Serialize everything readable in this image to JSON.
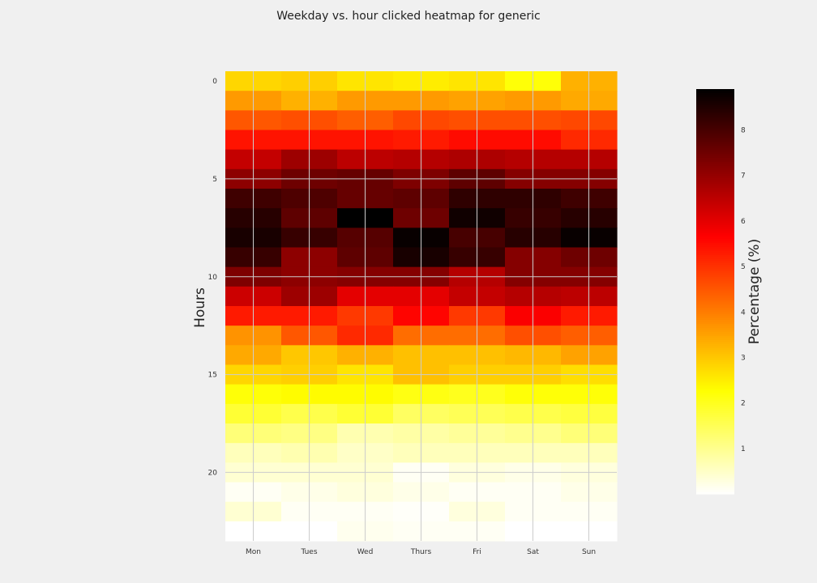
{
  "chart_data": {
    "type": "heatmap",
    "title": "Weekday vs. hour clicked heatmap for generic",
    "xlabel": "",
    "ylabel": "Hours",
    "x_categories": [
      "Mon",
      "Tues",
      "Wed",
      "Thurs",
      "Fri",
      "Sat",
      "Sun"
    ],
    "y_ticks": [
      0,
      5,
      10,
      15,
      20
    ],
    "colormap": "hot_r",
    "colorbar_label": "Percentage (%)",
    "colorbar_range": [
      0,
      8.9
    ],
    "colorbar_ticks": [
      1,
      2,
      3,
      4,
      5,
      6,
      7,
      8
    ],
    "grid": true,
    "values": [
      [
        2.8,
        2.9,
        2.6,
        2.5,
        2.6,
        2.2,
        3.3
      ],
      [
        3.6,
        3.3,
        3.6,
        3.6,
        3.5,
        3.6,
        3.4
      ],
      [
        4.5,
        4.6,
        4.4,
        4.7,
        4.6,
        4.6,
        4.7
      ],
      [
        5.4,
        5.4,
        5.4,
        5.3,
        5.5,
        5.5,
        5.1
      ],
      [
        6.4,
        6.9,
        6.5,
        6.6,
        6.7,
        6.6,
        6.6
      ],
      [
        7.1,
        7.5,
        7.6,
        7.3,
        7.7,
        7.2,
        7.2
      ],
      [
        8.1,
        7.9,
        7.6,
        7.7,
        8.3,
        8.3,
        8.1
      ],
      [
        8.4,
        7.7,
        8.9,
        7.5,
        8.7,
        8.2,
        8.4
      ],
      [
        8.6,
        8.2,
        7.8,
        8.8,
        8.0,
        8.4,
        8.8
      ],
      [
        8.2,
        7.1,
        7.7,
        8.6,
        8.2,
        7.2,
        7.5
      ],
      [
        7.3,
        7.1,
        7.2,
        7.2,
        6.6,
        7.2,
        7.2
      ],
      [
        6.3,
        6.9,
        6.0,
        6.0,
        6.4,
        6.6,
        6.5
      ],
      [
        5.3,
        5.3,
        4.9,
        5.6,
        4.9,
        5.7,
        5.3
      ],
      [
        3.7,
        4.5,
        5.1,
        4.2,
        4.2,
        4.6,
        4.4
      ],
      [
        3.4,
        3.0,
        3.3,
        3.1,
        3.1,
        3.2,
        3.5
      ],
      [
        2.8,
        2.9,
        2.6,
        3.1,
        2.9,
        2.9,
        2.7
      ],
      [
        2.2,
        2.3,
        2.3,
        2.1,
        2.0,
        2.2,
        2.2
      ],
      [
        1.8,
        1.6,
        1.8,
        1.4,
        1.5,
        1.6,
        1.7
      ],
      [
        1.2,
        1.1,
        0.7,
        0.8,
        0.9,
        1.0,
        1.2
      ],
      [
        0.6,
        0.7,
        0.5,
        0.6,
        0.6,
        0.6,
        0.6
      ],
      [
        0.4,
        0.4,
        0.4,
        0.1,
        0.3,
        0.2,
        0.3
      ],
      [
        0.1,
        0.2,
        0.3,
        0.2,
        0.1,
        0.1,
        0.2
      ],
      [
        0.4,
        0.1,
        0.1,
        0.05,
        0.3,
        0.1,
        0.1
      ],
      [
        0.0,
        0.0,
        0.15,
        0.1,
        0.1,
        0.0,
        0.0
      ]
    ]
  }
}
